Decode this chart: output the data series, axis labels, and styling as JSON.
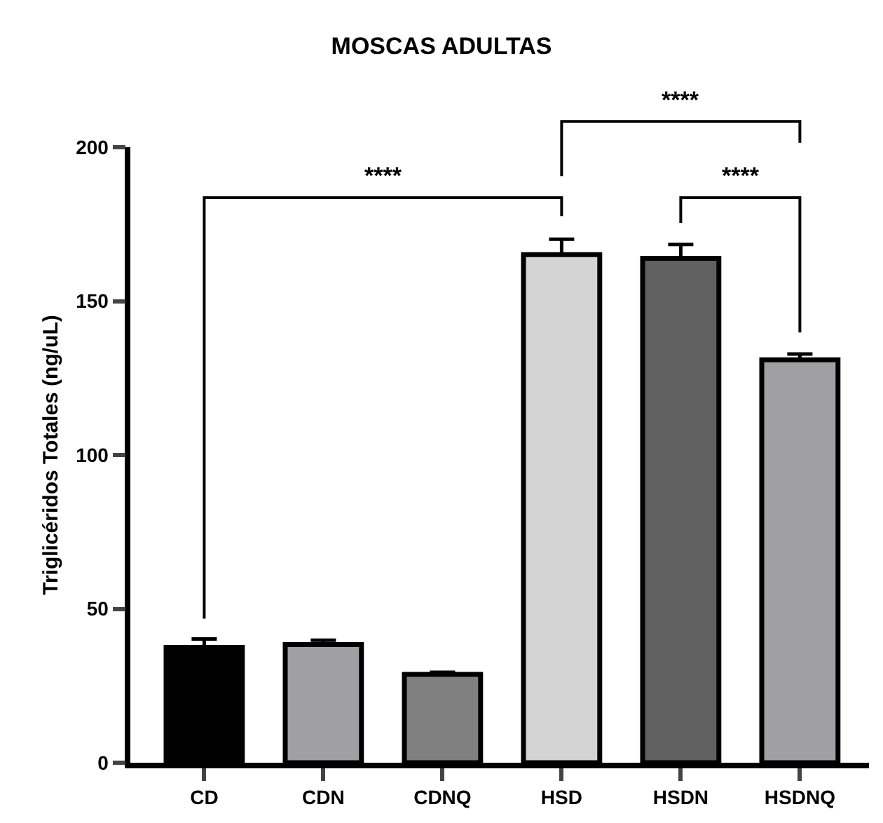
{
  "chart_data": {
    "type": "bar",
    "title": "MOSCAS ADULTAS",
    "ylabel": "Triglicéridos Totales (ng/uL)",
    "categories": [
      "CD",
      "CDN",
      "CDNQ",
      "HSD",
      "HSDN",
      "HSDNQ"
    ],
    "values": [
      37.5,
      38.4,
      28.7,
      165.1,
      163.9,
      130.9
    ],
    "errors": [
      2.7,
      1.4,
      0.7,
      5.0,
      4.5,
      1.9
    ],
    "colors": [
      "#000000",
      "#a0a0a4",
      "#808080",
      "#d4d4d4",
      "#606060",
      "#a0a0a4"
    ],
    "ylim": [
      0,
      200
    ],
    "yticks": [
      0,
      50,
      100,
      150,
      200
    ],
    "annotations": [
      "****",
      "****",
      "****"
    ]
  }
}
